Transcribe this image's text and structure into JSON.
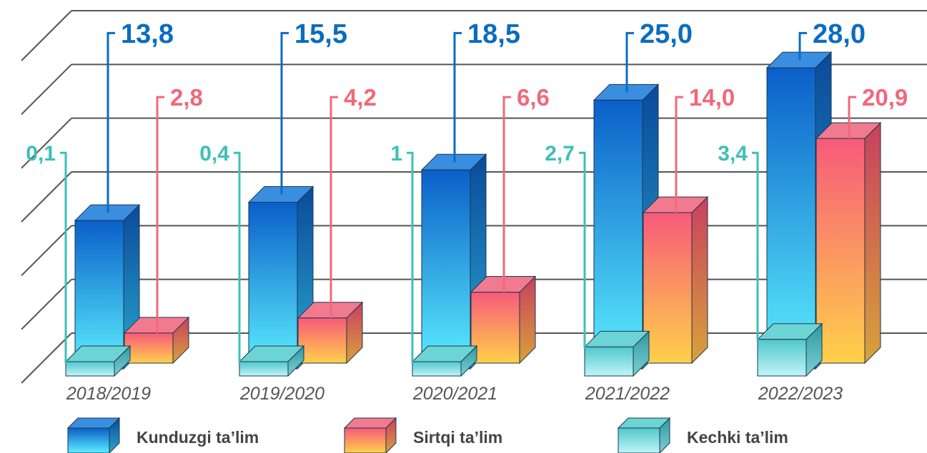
{
  "chart_data": {
    "type": "bar",
    "title": "",
    "xlabel": "",
    "ylabel": "",
    "ylim": [
      0,
      30
    ],
    "grid": true,
    "legend_position": "bottom",
    "categories": [
      "2018/2019",
      "2019/2020",
      "2020/2021",
      "2021/2022",
      "2022/2023"
    ],
    "series": [
      {
        "name": "Kunduzgi ta’lim",
        "values": [
          13.8,
          15.5,
          18.5,
          25.0,
          28.0
        ],
        "labels": [
          "13,8",
          "15,5",
          "18,5",
          "25,0",
          "28,0"
        ],
        "color": "#1f6fd0",
        "label_color": "#0b6cc0"
      },
      {
        "name": "Sirtqi ta’lim",
        "values": [
          2.8,
          4.2,
          6.6,
          14.0,
          20.9
        ],
        "labels": [
          "2,8",
          "4,2",
          "6,6",
          "14,0",
          "20,9"
        ],
        "color": "#f2667a",
        "label_color": "#f0697a"
      },
      {
        "name": "Kechki ta’lim",
        "values": [
          0.1,
          0.4,
          1,
          2.7,
          3.4
        ],
        "labels": [
          "0,1",
          "0,4",
          "1",
          "2,7",
          "3,4"
        ],
        "color": "#4cc8c8",
        "label_color": "#3cc0b8"
      }
    ]
  }
}
